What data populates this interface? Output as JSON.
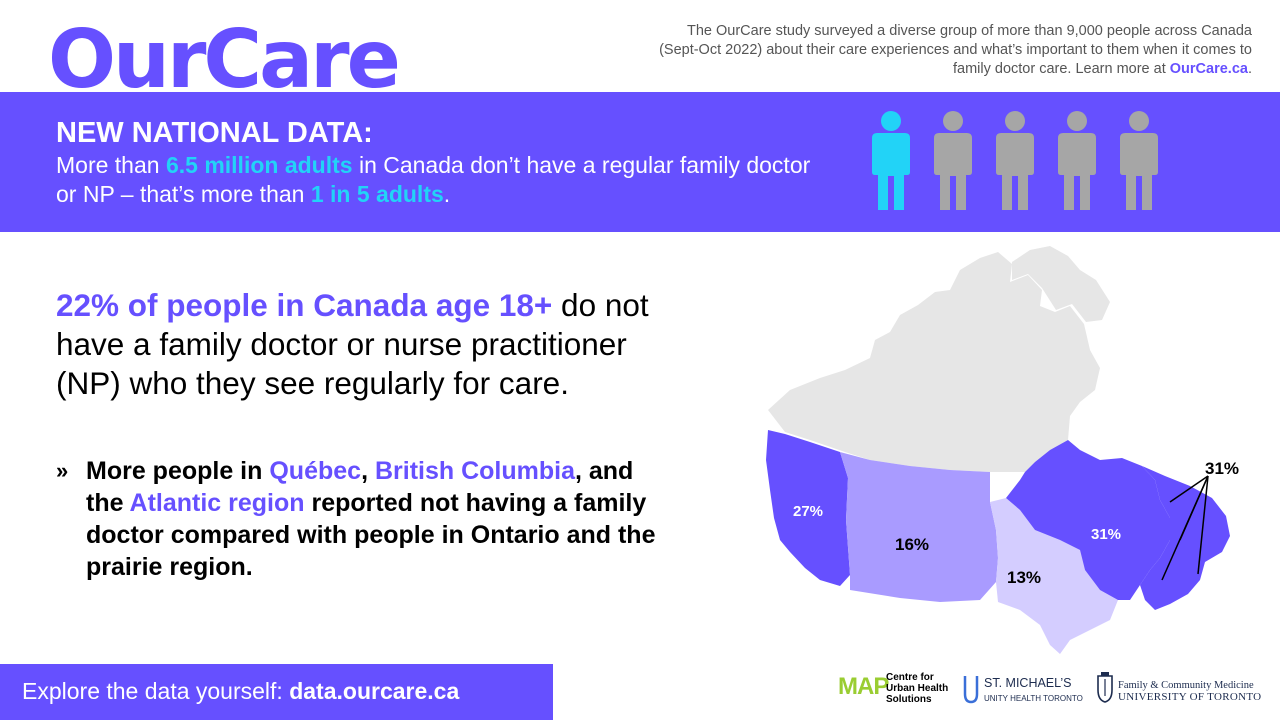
{
  "logo": "OurCare",
  "intro": {
    "text": "The OurCare study surveyed a diverse group of more than 9,000 people across Canada (Sept-Oct 2022) about their care experiences and what’s important to them when it comes to family doctor care. Learn more at ",
    "link": "OurCare.ca",
    "end": "."
  },
  "banner": {
    "title": "NEW NATIONAL DATA:",
    "t1": "More than ",
    "h1": "6.5 million adults",
    "t2": " in Canada don’t have a regular family doctor or NP – that’s more than ",
    "h2": "1 in 5 adults",
    "t3": ".",
    "people_icons": {
      "total": 5,
      "highlighted": 1
    }
  },
  "headline": {
    "highlight": "22% of people in Canada age 18+",
    "rest": " do not have a family doctor or nurse practitioner (NP) who they see regularly for care."
  },
  "bullet": {
    "mark": "»",
    "t1": "More people in ",
    "h1": "Québec",
    "t2": ", ",
    "h2": "British Columbia",
    "t3": ", and the ",
    "h3": "Atlantic region",
    "t4": " reported not having a family doctor compared with people in Ontario and the prairie region."
  },
  "map": {
    "labels": {
      "bc": "27%",
      "prairies": "16%",
      "ontario": "13%",
      "quebec": "31%",
      "atlantic": "31%"
    },
    "colors": {
      "high": "#6650ff",
      "mid": "#a99bff",
      "low": "#d4cdff",
      "north": "#e6e6e6"
    }
  },
  "footer": {
    "text": "Explore the data yourself: ",
    "url": "data.ourcare.ca"
  },
  "partners": {
    "map_logo": "MAP",
    "map_text": "Centre for Urban Health Solutions",
    "stmichaels": "ST. MICHAEL’S",
    "stmichaels_sub": "UNITY HEALTH TORONTO",
    "uoft_line1": "Family & Community Medicine",
    "uoft_line2": "UNIVERSITY OF TORONTO"
  },
  "colors": {
    "brand": "#6650ff",
    "accent": "#22d3f7",
    "icon_grey": "#a6a6a6"
  }
}
